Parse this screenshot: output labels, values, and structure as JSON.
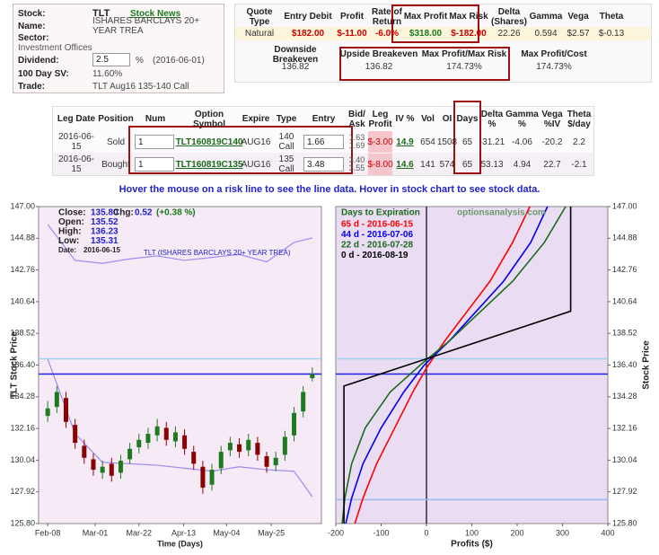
{
  "stock_info": {
    "stock_label": "Stock:",
    "stock": "TLT",
    "news": "Stock News",
    "name_label": "Name:",
    "name": "ISHARES BARCLAYS 20+ YEAR TREA",
    "sector_label": "Sector:",
    "sector": "Investment Offices",
    "dividend_label": "Dividend:",
    "dividend": "2.5",
    "dividend_unit": "%",
    "dividend_date": "(2016-06-01)",
    "sv_label": "100 Day SV:",
    "sv": "11.60%",
    "trade_label": "Trade:",
    "trade": "TLT Aug16 135-140 Call"
  },
  "quote": {
    "headers": [
      "Quote Type",
      "Entry Debit",
      "Profit",
      "Rate of Return",
      "Max Profit",
      "Max Risk",
      "Delta (Shares)",
      "Gamma",
      "Vega",
      "Theta"
    ],
    "row": [
      "Natural",
      "$182.00",
      "$-11.00",
      "-6.0%",
      "$318.00",
      "$-182.00",
      "22.26",
      "0.594",
      "$2.57",
      "$-0.13"
    ],
    "headers2": [
      "Downside Breakeven",
      "Upside Breakeven",
      "Max Profit/Max Risk",
      "Max Profit/Cost"
    ],
    "row2": [
      "136.82",
      "136.82",
      "174.73%",
      "174.73%"
    ]
  },
  "legs": {
    "headers": [
      "Leg Date",
      "Position",
      "Num",
      "Option Symbol",
      "Expire",
      "Type",
      "Entry",
      "Bid/ Ask",
      "Leg Profit",
      "IV %",
      "Vol",
      "OI",
      "Days",
      "Delta %",
      "Gamma %",
      "Vega %IV",
      "Theta $/day"
    ],
    "rows": [
      [
        "2016-06-15",
        "Sold",
        "1",
        "TLT160819C140",
        "AUG16",
        "140 Call",
        "1.66",
        "1.63 1.69",
        "$-3.00",
        "14.9",
        "654",
        "1508",
        "65",
        "-31.21",
        "-4.06",
        "-20.2",
        "2.2"
      ],
      [
        "2016-06-15",
        "Bought",
        "1",
        "TLT160819C135",
        "AUG16",
        "135 Call",
        "3.48",
        "3.40 3.55",
        "$-8.00",
        "14.6",
        "141",
        "574",
        "65",
        "53.13",
        "4.94",
        "22.7",
        "-2.1"
      ]
    ]
  },
  "hover_note": "Hover the mouse on a risk line to see the line data. Hover in stock chart to see stock data.",
  "stock_chart": {
    "type": "candlestick",
    "ylabel": "TLT Stock Price",
    "xlabel": "Time (Days)",
    "series_name": "TLT (ISHARES BARCLAYS 20+ YEAR TREA)",
    "info": {
      "close_label": "Close:",
      "close": "135.80",
      "open_label": "Open:",
      "open": "135.52",
      "high_label": "High:",
      "high": "136.23",
      "low_label": "Low:",
      "low": "135.31",
      "date_label": "Date:",
      "date": "2016-06-15",
      "chg_label": "Chg:",
      "chg": "0.52",
      "chg_pct": "(+0.38 %)"
    },
    "ylim": [
      125.8,
      147.0
    ],
    "yticks": [
      {
        "value": 125.8,
        "label": "125.80"
      },
      127.92,
      130.04,
      132.16,
      134.28,
      {
        "value": 136.4,
        "label": "136.40"
      },
      138.52,
      140.64,
      142.76,
      144.88,
      {
        "value": 147.0,
        "label": "147.00"
      }
    ],
    "xlim": [
      -1,
      30
    ],
    "xticks": [
      {
        "value": 0,
        "label": "Feb-08"
      },
      {
        "value": 5.2,
        "label": "Mar-01"
      },
      {
        "value": 10,
        "label": "Mar-22"
      },
      {
        "value": 14.9,
        "label": "Apr-13"
      },
      {
        "value": 19.6,
        "label": "May-04"
      },
      {
        "value": 24.5,
        "label": "May-25"
      }
    ],
    "up_color": "#1f7a1f",
    "down_color": "#8b0000",
    "open": [
      133.0,
      133.6,
      134.2,
      132.4,
      131.0,
      130.1,
      129.2,
      129.8,
      129.2,
      130.1,
      130.9,
      131.2,
      131.7,
      132.2,
      131.3,
      131.7,
      130.6,
      129.6,
      128.4,
      129.5,
      130.7,
      131.1,
      130.7,
      131.2,
      130.3,
      129.7,
      130.4,
      131.7,
      133.3,
      135.52
    ],
    "high": [
      134.0,
      135.0,
      134.6,
      132.8,
      131.4,
      130.5,
      130.0,
      130.2,
      130.4,
      131.2,
      131.8,
      132.2,
      132.8,
      132.6,
      132.3,
      132.1,
      131.0,
      130.0,
      129.8,
      131.0,
      131.6,
      131.5,
      131.8,
      131.6,
      130.6,
      130.6,
      132.0,
      133.6,
      135.0,
      136.23
    ],
    "low": [
      132.6,
      133.2,
      132.2,
      130.8,
      129.8,
      129.0,
      128.8,
      128.6,
      128.8,
      129.8,
      130.5,
      130.8,
      131.3,
      131.0,
      130.9,
      130.4,
      129.4,
      127.8,
      128.0,
      129.1,
      130.3,
      130.2,
      130.3,
      130.0,
      129.2,
      129.3,
      130.0,
      131.3,
      132.9,
      135.31
    ],
    "close": [
      133.5,
      134.6,
      132.6,
      131.2,
      130.2,
      129.4,
      129.6,
      129.0,
      130.0,
      130.8,
      131.4,
      131.8,
      132.3,
      131.4,
      131.9,
      130.8,
      129.8,
      128.2,
      129.4,
      130.6,
      131.2,
      130.6,
      131.4,
      130.4,
      129.6,
      130.2,
      131.6,
      133.2,
      134.6,
      135.8
    ],
    "bands": [
      {
        "color": "#9c8cf0",
        "x": [
          0,
          3,
          6,
          9,
          12,
          15,
          18,
          21,
          24,
          27,
          29
        ],
        "values": [
          145.8,
          143.4,
          143.2,
          143.5,
          143.7,
          143.4,
          143.6,
          143.8,
          143.3,
          144.6,
          144.9
        ]
      },
      {
        "color": "#9c8cf0",
        "x": [
          0,
          3,
          6,
          9,
          12,
          15,
          18,
          21,
          24,
          27,
          29
        ],
        "values": [
          136.8,
          131.8,
          129.9,
          129.8,
          129.7,
          129.5,
          129.3,
          129.6,
          129.4,
          129.3,
          127.6
        ]
      }
    ],
    "hlines": [
      {
        "value": 136.82,
        "color": "#9fd3ee"
      },
      {
        "value": 135.8,
        "color": "#2020dd"
      }
    ]
  },
  "risk_chart": {
    "type": "line",
    "xlabel": "Profits ($)",
    "ylabel": "Stock Price",
    "legend_title": "Days to Expiration",
    "legend": "upper left",
    "watermark": "optionsanalysis.com",
    "xlim": [
      -200,
      400
    ],
    "xticks": [
      -200,
      -100,
      0,
      100,
      200,
      300,
      400
    ],
    "ylim": [
      125.8,
      147.0
    ],
    "yticks": [
      {
        "value": 125.8,
        "label": "125.80"
      },
      127.92,
      130.04,
      132.16,
      134.28,
      {
        "value": 136.4,
        "label": "136.40"
      },
      138.52,
      140.64,
      142.76,
      144.88,
      {
        "value": 147.0,
        "label": "147.00"
      }
    ],
    "hlines": [
      {
        "value": 136.82,
        "color": "#9fd3ee"
      },
      {
        "value": 135.8,
        "color": "#2020dd"
      },
      {
        "value": 127.4,
        "color": "#9fb8ee"
      }
    ],
    "series": [
      {
        "name": "65 d - 2016-06-15",
        "color": "#ff0000",
        "x": [
          -158,
          -140,
          -110,
          -70,
          -30,
          0,
          40,
          90,
          140,
          190,
          228
        ],
        "values": [
          125.8,
          127.5,
          129.8,
          132.2,
          134.6,
          136.2,
          138.0,
          140.0,
          142.0,
          144.6,
          147.0
        ]
      },
      {
        "name": "44 d - 2016-07-06",
        "color": "#0000ee",
        "x": [
          -178,
          -165,
          -140,
          -100,
          -50,
          -5,
          50,
          110,
          170,
          230,
          267
        ],
        "values": [
          125.8,
          127.5,
          129.8,
          132.2,
          134.6,
          136.4,
          138.0,
          140.0,
          142.0,
          144.6,
          147.0
        ]
      },
      {
        "name": "22 d - 2016-07-28",
        "color": "#1a6b1a",
        "x": [
          -186,
          -180,
          -165,
          -135,
          -80,
          -10,
          50,
          120,
          190,
          260,
          307
        ],
        "values": [
          125.8,
          127.5,
          129.8,
          132.2,
          134.6,
          136.5,
          138.0,
          140.0,
          142.0,
          144.6,
          147.0
        ]
      },
      {
        "name": "0 d - 2016-08-19",
        "color": "#000000",
        "x": [
          -182,
          -182,
          318,
          318
        ],
        "values": [
          125.8,
          135.0,
          140.0,
          147.0
        ]
      }
    ]
  }
}
